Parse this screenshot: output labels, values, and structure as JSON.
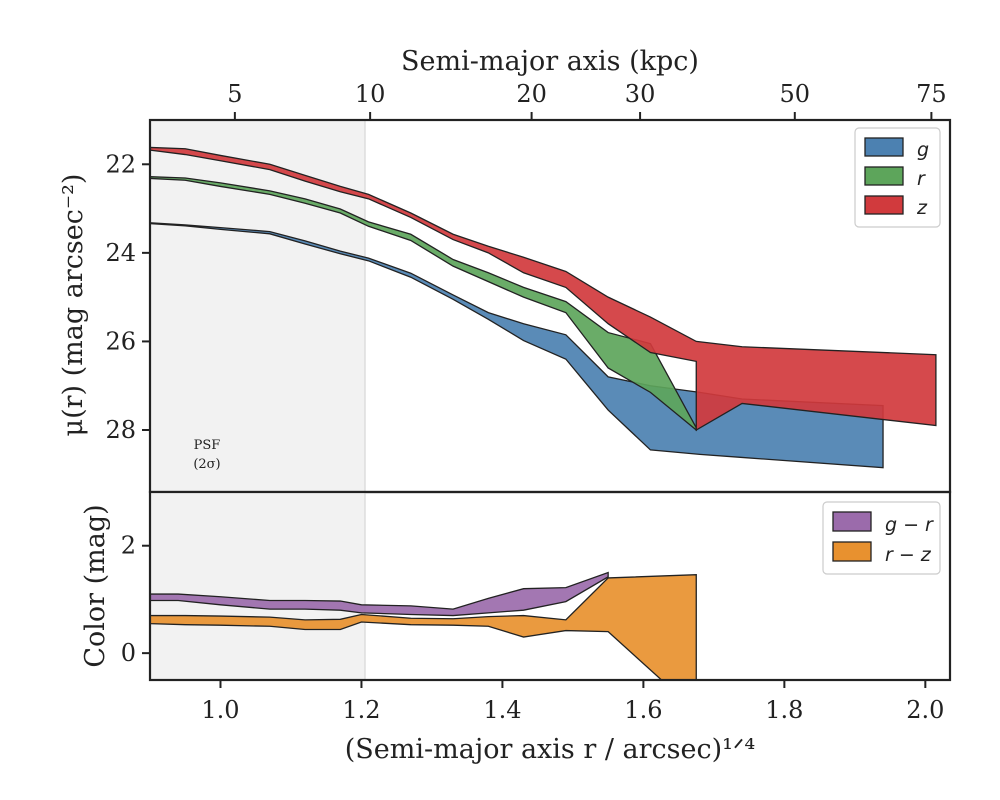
{
  "chart_data": [
    {
      "type": "area",
      "title": "",
      "x_scale": "fourth-root",
      "xlim": [
        0.9,
        2.035
      ],
      "ylim": [
        29.4,
        21.0
      ],
      "y_inverted": true,
      "top_axis": {
        "label": "Semi-major axis (kpc)",
        "ticks": [
          {
            "label": "5",
            "x": 1.0204
          },
          {
            "label": "10",
            "x": 1.2123
          },
          {
            "label": "20",
            "x": 1.4414
          },
          {
            "label": "30",
            "x": 1.5953
          },
          {
            "label": "50",
            "x": 1.8148
          },
          {
            "label": "75",
            "x": 2.0086
          }
        ]
      },
      "ylabel": "μ(r) (mag arcsec⁻²)",
      "yticks": [
        22,
        24,
        26,
        28
      ],
      "psf_region": {
        "x_max": 1.205,
        "label_line1": "PSF",
        "label_line2": "(2σ)"
      },
      "legend": {
        "position": "top-right"
      },
      "series": [
        {
          "name": "g",
          "color": "#4c81b1",
          "upper": [
            [
              0.9,
              23.32
            ],
            [
              0.95,
              23.37
            ],
            [
              1.0,
              23.43
            ],
            [
              1.07,
              23.52
            ],
            [
              1.12,
              23.73
            ],
            [
              1.17,
              23.96
            ],
            [
              1.21,
              24.12
            ],
            [
              1.27,
              24.46
            ],
            [
              1.33,
              24.95
            ],
            [
              1.38,
              25.35
            ],
            [
              1.43,
              25.6
            ],
            [
              1.49,
              25.85
            ],
            [
              1.55,
              26.8
            ],
            [
              1.61,
              27.0
            ],
            [
              1.68,
              27.15
            ],
            [
              1.74,
              27.3
            ],
            [
              1.94,
              27.45
            ]
          ],
          "lower": [
            [
              0.9,
              23.34
            ],
            [
              0.95,
              23.39
            ],
            [
              1.0,
              23.47
            ],
            [
              1.07,
              23.57
            ],
            [
              1.12,
              23.8
            ],
            [
              1.17,
              24.02
            ],
            [
              1.21,
              24.18
            ],
            [
              1.27,
              24.55
            ],
            [
              1.33,
              25.05
            ],
            [
              1.38,
              25.5
            ],
            [
              1.43,
              25.98
            ],
            [
              1.49,
              26.4
            ],
            [
              1.55,
              27.55
            ],
            [
              1.61,
              28.45
            ],
            [
              1.68,
              28.55
            ],
            [
              1.74,
              28.62
            ],
            [
              1.94,
              28.85
            ]
          ]
        },
        {
          "name": "r",
          "color": "#5da55b",
          "upper": [
            [
              0.9,
              22.28
            ],
            [
              0.95,
              22.31
            ],
            [
              1.0,
              22.42
            ],
            [
              1.07,
              22.6
            ],
            [
              1.12,
              22.78
            ],
            [
              1.17,
              23.01
            ],
            [
              1.21,
              23.3
            ],
            [
              1.27,
              23.58
            ],
            [
              1.33,
              24.15
            ],
            [
              1.38,
              24.45
            ],
            [
              1.43,
              24.78
            ],
            [
              1.49,
              25.1
            ],
            [
              1.55,
              25.8
            ],
            [
              1.61,
              26.05
            ],
            [
              1.675,
              27.95
            ]
          ],
          "lower": [
            [
              0.9,
              22.32
            ],
            [
              0.95,
              22.36
            ],
            [
              1.0,
              22.5
            ],
            [
              1.07,
              22.68
            ],
            [
              1.12,
              22.88
            ],
            [
              1.17,
              23.1
            ],
            [
              1.21,
              23.4
            ],
            [
              1.27,
              23.72
            ],
            [
              1.33,
              24.3
            ],
            [
              1.38,
              24.65
            ],
            [
              1.43,
              25.0
            ],
            [
              1.49,
              25.35
            ],
            [
              1.55,
              26.6
            ],
            [
              1.61,
              27.15
            ],
            [
              1.675,
              28.0
            ]
          ]
        },
        {
          "name": "z",
          "color": "#d13a3d",
          "upper": [
            [
              0.9,
              21.62
            ],
            [
              0.95,
              21.65
            ],
            [
              1.0,
              21.8
            ],
            [
              1.07,
              22.0
            ],
            [
              1.12,
              22.25
            ],
            [
              1.17,
              22.5
            ],
            [
              1.21,
              22.68
            ],
            [
              1.27,
              23.1
            ],
            [
              1.33,
              23.58
            ],
            [
              1.38,
              23.85
            ],
            [
              1.43,
              24.1
            ],
            [
              1.49,
              24.42
            ],
            [
              1.55,
              25.0
            ],
            [
              1.61,
              25.45
            ],
            [
              1.675,
              26.0
            ],
            [
              1.74,
              26.12
            ],
            [
              2.015,
              26.3
            ]
          ],
          "lower": [
            [
              0.9,
              21.68
            ],
            [
              0.95,
              21.78
            ],
            [
              1.0,
              21.92
            ],
            [
              1.07,
              22.12
            ],
            [
              1.12,
              22.38
            ],
            [
              1.17,
              22.62
            ],
            [
              1.21,
              22.78
            ],
            [
              1.27,
              23.2
            ],
            [
              1.33,
              23.7
            ],
            [
              1.38,
              24.0
            ],
            [
              1.43,
              24.45
            ],
            [
              1.49,
              24.78
            ],
            [
              1.55,
              25.6
            ],
            [
              1.61,
              26.25
            ],
            [
              1.675,
              26.45
            ],
            [
              1.675,
              28.0
            ],
            [
              1.74,
              27.4
            ],
            [
              2.015,
              27.9
            ]
          ]
        }
      ]
    },
    {
      "type": "area",
      "xlim": [
        0.9,
        2.035
      ],
      "ylim": [
        -0.5,
        3.0
      ],
      "xlabel": "(Semi-major axis r / arcsec)¹ᐟ⁴",
      "xticks": [
        1.0,
        1.2,
        1.4,
        1.6,
        1.8,
        2.0
      ],
      "xtick_labels": [
        "1.0",
        "1.2",
        "1.4",
        "1.6",
        "1.8",
        "2.0"
      ],
      "ylabel": "Color (mag)",
      "yticks": [
        0,
        2
      ],
      "legend": {
        "position": "top-right"
      },
      "series": [
        {
          "name": "g − r",
          "color": "#9b6bab",
          "upper": [
            [
              0.9,
              1.1
            ],
            [
              0.94,
              1.1
            ],
            [
              1.0,
              1.05
            ],
            [
              1.07,
              0.98
            ],
            [
              1.12,
              0.98
            ],
            [
              1.17,
              0.97
            ],
            [
              1.2,
              0.9
            ],
            [
              1.27,
              0.88
            ],
            [
              1.33,
              0.82
            ],
            [
              1.38,
              1.02
            ],
            [
              1.43,
              1.2
            ],
            [
              1.49,
              1.22
            ],
            [
              1.55,
              1.5
            ]
          ],
          "lower": [
            [
              0.9,
              0.98
            ],
            [
              0.94,
              0.98
            ],
            [
              1.0,
              0.9
            ],
            [
              1.07,
              0.82
            ],
            [
              1.12,
              0.82
            ],
            [
              1.17,
              0.8
            ],
            [
              1.2,
              0.75
            ],
            [
              1.27,
              0.72
            ],
            [
              1.33,
              0.7
            ],
            [
              1.38,
              0.75
            ],
            [
              1.43,
              0.8
            ],
            [
              1.49,
              0.96
            ],
            [
              1.55,
              1.42
            ]
          ]
        },
        {
          "name": "r − z",
          "color": "#e8912f",
          "upper": [
            [
              0.9,
              0.7
            ],
            [
              0.95,
              0.7
            ],
            [
              1.0,
              0.69
            ],
            [
              1.07,
              0.67
            ],
            [
              1.12,
              0.62
            ],
            [
              1.17,
              0.63
            ],
            [
              1.2,
              0.72
            ],
            [
              1.27,
              0.65
            ],
            [
              1.33,
              0.64
            ],
            [
              1.38,
              0.68
            ],
            [
              1.43,
              0.7
            ],
            [
              1.49,
              0.62
            ],
            [
              1.55,
              1.4
            ],
            [
              1.675,
              1.46
            ]
          ],
          "lower": [
            [
              0.9,
              0.55
            ],
            [
              0.95,
              0.53
            ],
            [
              1.0,
              0.52
            ],
            [
              1.07,
              0.5
            ],
            [
              1.12,
              0.44
            ],
            [
              1.17,
              0.44
            ],
            [
              1.2,
              0.58
            ],
            [
              1.27,
              0.53
            ],
            [
              1.33,
              0.52
            ],
            [
              1.38,
              0.5
            ],
            [
              1.43,
              0.3
            ],
            [
              1.49,
              0.42
            ],
            [
              1.55,
              0.4
            ],
            [
              1.63,
              -0.55
            ],
            [
              1.675,
              -0.55
            ]
          ]
        }
      ]
    }
  ]
}
